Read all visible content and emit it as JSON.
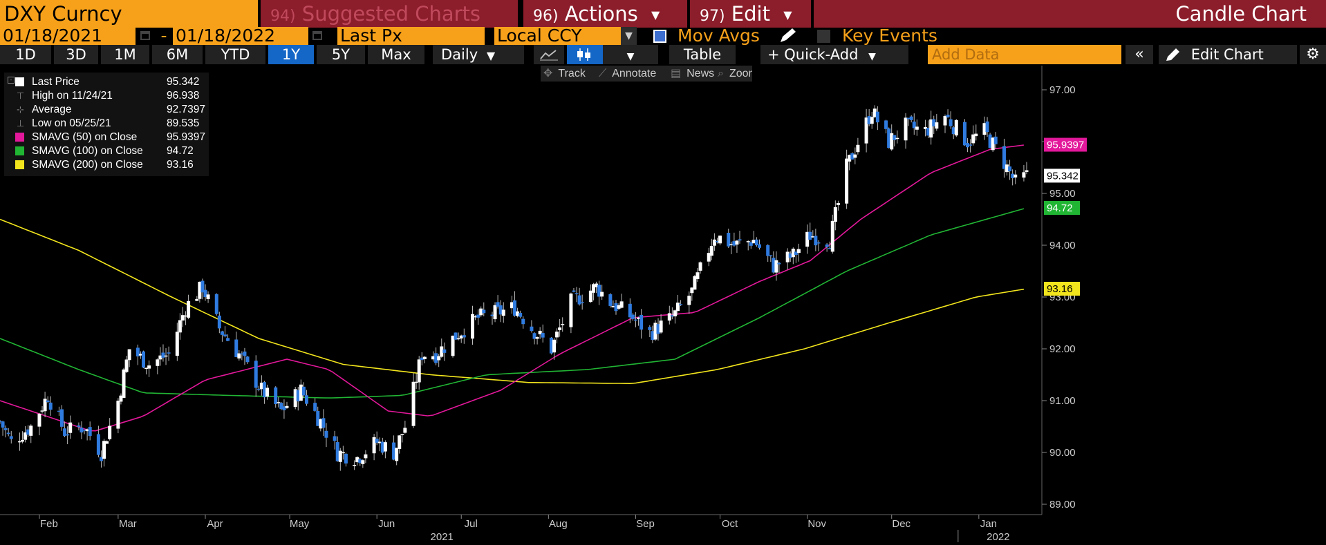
{
  "header": {
    "ticker": "DXY Curncy",
    "suggested": {
      "num": "94)",
      "label": "Suggested Charts"
    },
    "actions": {
      "num": "96)",
      "label": "Actions"
    },
    "edit": {
      "num": "97)",
      "label": "Edit"
    },
    "title": "Candle Chart"
  },
  "controls": {
    "start_date": "01/18/2021",
    "date_sep": "-",
    "end_date": "01/18/2022",
    "field": "Last Px",
    "currency": "Local CCY",
    "mov_avgs_label": "Mov Avgs",
    "mov_avgs_checked": true,
    "key_events_label": "Key Events",
    "key_events_checked": false
  },
  "periods": [
    "1D",
    "3D",
    "1M",
    "6M",
    "YTD",
    "1Y",
    "5Y",
    "Max"
  ],
  "selected_period": "1Y",
  "frequency": "Daily",
  "table_label": "Table",
  "quick_add_label": "+ Quick-Add",
  "add_data_placeholder": "Add Data",
  "edit_chart_label": "Edit Chart",
  "toolbar": {
    "track": "Track",
    "annotate": "Annotate",
    "news": "News",
    "zoom": "Zoom"
  },
  "legend": [
    {
      "label": "Last Price",
      "value": "95.342",
      "symbol": "square",
      "color": "#ffffff"
    },
    {
      "label": "High on 11/24/21",
      "value": "96.938",
      "symbol": "high"
    },
    {
      "label": "Average",
      "value": "92.7397",
      "symbol": "avg"
    },
    {
      "label": "Low on 05/25/21",
      "value": "89.535",
      "symbol": "low"
    },
    {
      "label": "SMAVG (50)  on Close",
      "value": "95.9397",
      "symbol": "square",
      "color": "#e3189b"
    },
    {
      "label": "SMAVG (100)  on Close",
      "value": "94.72",
      "symbol": "square",
      "color": "#21b534"
    },
    {
      "label": "SMAVG (200)  on Close",
      "value": "93.16",
      "symbol": "square",
      "color": "#f2e51d"
    }
  ],
  "colors": {
    "accent_orange": "#f7a11a",
    "header_red": "#8c1d2b",
    "selected_blue": "#1466c7",
    "candle_up": "#ffffff",
    "candle_down": "#2f7be0",
    "sma50": "#e3189b",
    "sma100": "#21b534",
    "sma200": "#f2e51d"
  },
  "chart_data": {
    "type": "candlestick",
    "title": "Candle Chart",
    "ylim": [
      88.8,
      97.4
    ],
    "y_ticks": [
      "89.00",
      "90.00",
      "91.00",
      "92.00",
      "93.00",
      "94.00",
      "95.00",
      "96.00",
      "97.00"
    ],
    "x_range": [
      "2021-01-18",
      "2022-01-18"
    ],
    "x_ticks": [
      {
        "label": "Feb",
        "date": "2021-02-01"
      },
      {
        "label": "Mar",
        "date": "2021-03-01"
      },
      {
        "label": "Apr",
        "date": "2021-04-01"
      },
      {
        "label": "May",
        "date": "2021-05-01"
      },
      {
        "label": "Jun",
        "date": "2021-06-01"
      },
      {
        "label": "Jul",
        "date": "2021-07-01"
      },
      {
        "label": "Aug",
        "date": "2021-08-01"
      },
      {
        "label": "Sep",
        "date": "2021-09-01"
      },
      {
        "label": "Oct",
        "date": "2021-10-01"
      },
      {
        "label": "Nov",
        "date": "2021-11-01"
      },
      {
        "label": "Dec",
        "date": "2021-12-01"
      },
      {
        "label": "Jan",
        "date": "2022-01-01"
      }
    ],
    "year_labels": [
      {
        "label": "2021",
        "date": "2021-07-01"
      },
      {
        "label": "2022",
        "date": "2022-01-01"
      }
    ],
    "grid": false,
    "legend_position": "top-left",
    "close_anchors": [
      [
        "2021-01-18",
        90.6
      ],
      [
        "2021-01-22",
        90.2
      ],
      [
        "2021-01-29",
        90.5
      ],
      [
        "2021-02-04",
        91.1
      ],
      [
        "2021-02-10",
        90.4
      ],
      [
        "2021-02-17",
        90.5
      ],
      [
        "2021-02-23",
        90.0
      ],
      [
        "2021-03-01",
        91.0
      ],
      [
        "2021-03-05",
        92.0
      ],
      [
        "2021-03-12",
        91.7
      ],
      [
        "2021-03-19",
        91.9
      ],
      [
        "2021-03-25",
        92.8
      ],
      [
        "2021-03-31",
        93.2
      ],
      [
        "2021-04-06",
        92.4
      ],
      [
        "2021-04-13",
        91.9
      ],
      [
        "2021-04-21",
        91.2
      ],
      [
        "2021-04-28",
        90.8
      ],
      [
        "2021-05-05",
        91.2
      ],
      [
        "2021-05-12",
        90.6
      ],
      [
        "2021-05-18",
        90.0
      ],
      [
        "2021-05-25",
        89.9
      ],
      [
        "2021-06-01",
        90.2
      ],
      [
        "2021-06-07",
        90.0
      ],
      [
        "2021-06-11",
        90.5
      ],
      [
        "2021-06-17",
        91.9
      ],
      [
        "2021-06-22",
        91.9
      ],
      [
        "2021-06-30",
        92.3
      ],
      [
        "2021-07-07",
        92.6
      ],
      [
        "2021-07-14",
        92.7
      ],
      [
        "2021-07-20",
        92.8
      ],
      [
        "2021-07-26",
        92.4
      ],
      [
        "2021-08-02",
        92.0
      ],
      [
        "2021-08-09",
        92.9
      ],
      [
        "2021-08-18",
        93.2
      ],
      [
        "2021-08-23",
        92.9
      ],
      [
        "2021-08-31",
        92.6
      ],
      [
        "2021-09-06",
        92.3
      ],
      [
        "2021-09-14",
        92.6
      ],
      [
        "2021-09-21",
        93.1
      ],
      [
        "2021-09-29",
        94.2
      ],
      [
        "2021-10-06",
        94.0
      ],
      [
        "2021-10-13",
        94.1
      ],
      [
        "2021-10-20",
        93.6
      ],
      [
        "2021-10-27",
        93.8
      ],
      [
        "2021-11-02",
        94.2
      ],
      [
        "2021-11-09",
        94.1
      ],
      [
        "2021-11-15",
        95.5
      ],
      [
        "2021-11-24",
        96.6
      ],
      [
        "2021-11-30",
        96.0
      ],
      [
        "2021-12-06",
        96.3
      ],
      [
        "2021-12-13",
        96.2
      ],
      [
        "2021-12-20",
        96.5
      ],
      [
        "2021-12-28",
        96.0
      ],
      [
        "2022-01-03",
        96.2
      ],
      [
        "2022-01-10",
        95.6
      ],
      [
        "2022-01-14",
        95.2
      ],
      [
        "2022-01-18",
        95.342
      ]
    ],
    "sma50_anchors": [
      [
        "2021-01-18",
        91.0
      ],
      [
        "2021-02-20",
        90.4
      ],
      [
        "2021-03-10",
        90.7
      ],
      [
        "2021-04-01",
        91.4
      ],
      [
        "2021-04-30",
        91.8
      ],
      [
        "2021-05-15",
        91.6
      ],
      [
        "2021-06-05",
        90.8
      ],
      [
        "2021-06-20",
        90.7
      ],
      [
        "2021-07-15",
        91.2
      ],
      [
        "2021-08-05",
        91.9
      ],
      [
        "2021-08-31",
        92.6
      ],
      [
        "2021-09-22",
        92.7
      ],
      [
        "2021-10-15",
        93.3
      ],
      [
        "2021-11-02",
        93.7
      ],
      [
        "2021-11-20",
        94.5
      ],
      [
        "2021-12-15",
        95.4
      ],
      [
        "2022-01-05",
        95.85
      ],
      [
        "2022-01-18",
        95.94
      ]
    ],
    "sma100_anchors": [
      [
        "2021-01-18",
        92.2
      ],
      [
        "2021-02-15",
        91.6
      ],
      [
        "2021-03-10",
        91.15
      ],
      [
        "2021-04-10",
        91.1
      ],
      [
        "2021-05-15",
        91.05
      ],
      [
        "2021-06-10",
        91.1
      ],
      [
        "2021-07-10",
        91.5
      ],
      [
        "2021-08-15",
        91.6
      ],
      [
        "2021-09-15",
        91.8
      ],
      [
        "2021-10-15",
        92.6
      ],
      [
        "2021-11-15",
        93.5
      ],
      [
        "2021-12-15",
        94.2
      ],
      [
        "2022-01-18",
        94.72
      ]
    ],
    "sma200_anchors": [
      [
        "2021-01-18",
        94.5
      ],
      [
        "2021-02-15",
        93.9
      ],
      [
        "2021-03-20",
        93.0
      ],
      [
        "2021-04-20",
        92.2
      ],
      [
        "2021-05-20",
        91.7
      ],
      [
        "2021-06-20",
        91.5
      ],
      [
        "2021-07-25",
        91.35
      ],
      [
        "2021-08-31",
        91.33
      ],
      [
        "2021-09-30",
        91.6
      ],
      [
        "2021-10-31",
        92.0
      ],
      [
        "2021-11-30",
        92.5
      ],
      [
        "2021-12-31",
        93.0
      ],
      [
        "2022-01-18",
        93.16
      ]
    ],
    "price_tags": [
      {
        "value": 95.9397,
        "label": "95.9397",
        "series": "sma50"
      },
      {
        "value": 95.342,
        "label": "95.342",
        "series": "last"
      },
      {
        "value": 94.72,
        "label": "94.72",
        "series": "sma100"
      },
      {
        "value": 93.16,
        "label": "93.16",
        "series": "sma200"
      }
    ]
  }
}
